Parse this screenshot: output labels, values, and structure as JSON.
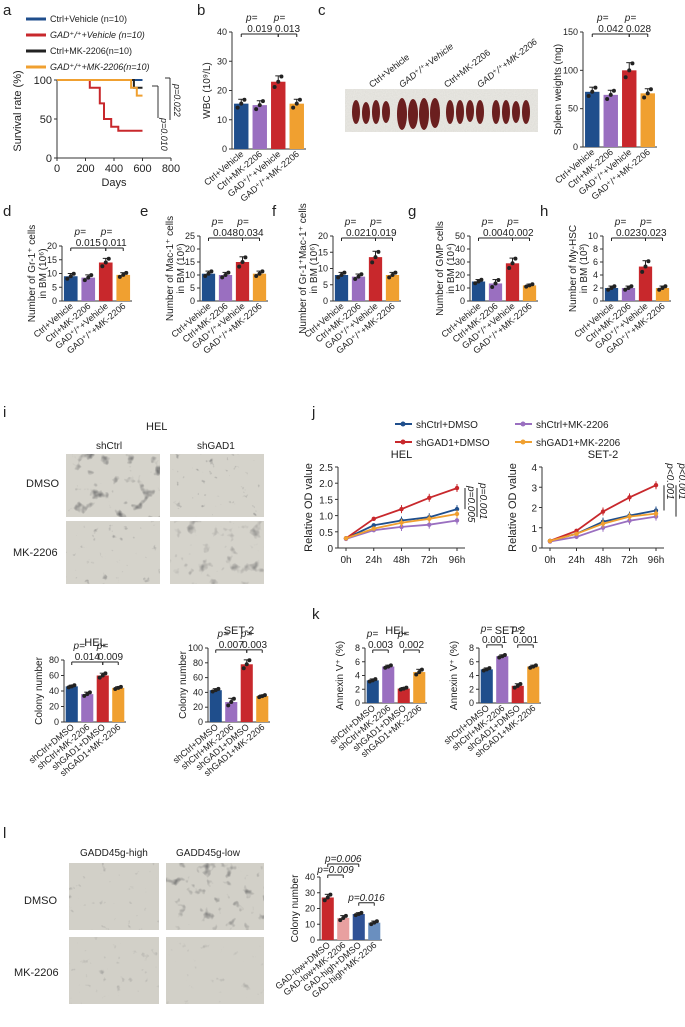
{
  "panel_labels": [
    "a",
    "b",
    "c",
    "d",
    "e",
    "f",
    "g",
    "h",
    "i",
    "j",
    "k",
    "l"
  ],
  "colors": {
    "blue": "#1f4e8c",
    "purple": "#9a6fc0",
    "red": "#c8282c",
    "orange": "#f0a030",
    "pink": "#e8a0a0",
    "steel": "#6a8fbf",
    "navy": "#2f5296"
  },
  "a": {
    "legend": [
      "Ctrl+Vehicle (n=10)",
      "GAD⁺/⁺+Vehicle (n=10)",
      "Ctrl+MK-2206(n=10)",
      "GAD⁺/⁺+MK-2206(n=10)"
    ],
    "pvalues": [
      "p=0.010",
      "p=0.022"
    ]
  },
  "c": {
    "photo_labels": [
      "Ctrl+Vehicle",
      "GAD⁺/⁺+Vehicle",
      "Ctrl+MK-2206",
      "GAD⁺/⁺+MK-2206"
    ]
  },
  "i": {
    "title": "HEL",
    "cols": [
      "shCtrl",
      "shGAD1"
    ],
    "rows": [
      "DMSO",
      "MK-2206"
    ]
  },
  "j": {
    "legend": [
      "shCtrl+DMSO",
      "shCtrl+MK-2206",
      "shGAD1+DMSO",
      "shGAD1+MK-2206"
    ]
  },
  "l": {
    "cols": [
      "GADD45g-high",
      "GADD45g-low"
    ],
    "rows": [
      "DMSO",
      "MK-2206"
    ]
  },
  "chart_data": [
    {
      "id": "a",
      "type": "line",
      "title": "",
      "xlabel": "Days",
      "ylabel": "Survival rate (%)",
      "xlim": [
        0,
        800
      ],
      "ylim": [
        0,
        100
      ],
      "xticks": [
        "0",
        "200",
        "400",
        "600",
        "800"
      ],
      "yticks": [
        "0",
        "50",
        "100"
      ],
      "series": [
        {
          "name": "Ctrl+Vehicle",
          "color": "#1f4e8c",
          "points": [
            [
              0,
              100
            ],
            [
              600,
              100
            ]
          ]
        },
        {
          "name": "GAD+Vehicle",
          "color": "#c8282c",
          "points": [
            [
              0,
              100
            ],
            [
              230,
              100
            ],
            [
              230,
              90
            ],
            [
              300,
              90
            ],
            [
              300,
              70
            ],
            [
              330,
              70
            ],
            [
              330,
              50
            ],
            [
              380,
              50
            ],
            [
              380,
              40
            ],
            [
              430,
              40
            ],
            [
              430,
              35
            ],
            [
              600,
              35
            ]
          ]
        },
        {
          "name": "Ctrl+MK-2206",
          "color": "#222222",
          "points": [
            [
              0,
              100
            ],
            [
              540,
              100
            ],
            [
              540,
              90
            ],
            [
              600,
              90
            ]
          ]
        },
        {
          "name": "GAD+MK-2206",
          "color": "#f0a030",
          "points": [
            [
              0,
              100
            ],
            [
              520,
              100
            ],
            [
              520,
              90
            ],
            [
              560,
              90
            ],
            [
              560,
              80
            ],
            [
              600,
              80
            ]
          ]
        }
      ]
    },
    {
      "id": "b",
      "type": "bar",
      "ylabel": "WBC (10⁹/L)",
      "ylim": [
        0,
        40
      ],
      "yticks": [
        "0",
        "10",
        "20",
        "30",
        "40"
      ],
      "categories": [
        "Ctrl+Vehicle",
        "Ctrl+MK-2206",
        "GAD⁺/⁺+Vehicle",
        "GAD⁺/⁺+MK-2206"
      ],
      "values": [
        15.5,
        15,
        23,
        15.5
      ],
      "errors": [
        1.5,
        1.5,
        2,
        1.5
      ],
      "pvals": [
        {
          "a": 0,
          "b": 2,
          "text": "0.019"
        },
        {
          "a": 2,
          "b": 3,
          "text": "0.013"
        }
      ]
    },
    {
      "id": "c",
      "type": "bar",
      "ylabel": "Spleen weights (mg)",
      "ylim": [
        0,
        150
      ],
      "yticks": [
        "0",
        "50",
        "100",
        "150"
      ],
      "categories": [
        "Ctrl+Vehicle",
        "Ctrl+MK-2206",
        "GAD⁺/⁺+Vehicle",
        "GAD⁺/⁺+MK-2206"
      ],
      "values": [
        72,
        68,
        100,
        70
      ],
      "errors": [
        6,
        6,
        10,
        6
      ],
      "pvals": [
        {
          "a": 0,
          "b": 2,
          "text": "0.042"
        },
        {
          "a": 2,
          "b": 3,
          "text": "0.028"
        }
      ]
    },
    {
      "id": "d",
      "type": "bar",
      "ylabel": "Number of Gr-1⁺ cells in BM (10⁶)",
      "ylim": [
        0,
        20
      ],
      "yticks": [
        "0",
        "5",
        "10",
        "15",
        "20"
      ],
      "categories": [
        "Ctrl+Vehicle",
        "Ctrl+MK-2206",
        "GAD⁺/⁺+Vehicle",
        "GAD⁺/⁺+MK-2206"
      ],
      "values": [
        9,
        8.5,
        14,
        9.5
      ],
      "errors": [
        1,
        1,
        1.5,
        0.8
      ],
      "pvals": [
        {
          "a": 0,
          "b": 2,
          "text": "0.015"
        },
        {
          "a": 2,
          "b": 3,
          "text": "0.011"
        }
      ]
    },
    {
      "id": "e",
      "type": "bar",
      "ylabel": "Number of Mac-1⁺ cells in BM (10⁶)",
      "ylim": [
        0,
        25
      ],
      "yticks": [
        "0",
        "5",
        "10",
        "15",
        "20",
        "25"
      ],
      "categories": [
        "Ctrl+Vehicle",
        "Ctrl+MK-2206",
        "GAD⁺/⁺+Vehicle",
        "GAD⁺/⁺+MK-2206"
      ],
      "values": [
        10.5,
        10,
        15,
        10.5
      ],
      "errors": [
        1,
        1,
        2,
        1
      ],
      "pvals": [
        {
          "a": 0,
          "b": 2,
          "text": "0.048"
        },
        {
          "a": 2,
          "b": 3,
          "text": "0.034"
        }
      ]
    },
    {
      "id": "f",
      "type": "bar",
      "ylabel": "Number of Gr-1⁺Mac-1⁺ cells in BM (10⁶)",
      "ylim": [
        0,
        20
      ],
      "yticks": [
        "0",
        "5",
        "10",
        "15",
        "20"
      ],
      "categories": [
        "Ctrl+Vehicle",
        "Ctrl+MK-2206",
        "GAD⁺/⁺+Vehicle",
        "GAD⁺/⁺+MK-2206"
      ],
      "values": [
        8,
        7.5,
        13.5,
        8
      ],
      "errors": [
        0.8,
        0.8,
        1.8,
        0.8
      ],
      "pvals": [
        {
          "a": 0,
          "b": 2,
          "text": "0.021"
        },
        {
          "a": 2,
          "b": 3,
          "text": "0.019"
        }
      ]
    },
    {
      "id": "g",
      "type": "bar",
      "ylabel": "Number of GMP cells in BM (10⁴)",
      "ylim": [
        0,
        50
      ],
      "yticks": [
        "0",
        "10",
        "20",
        "30",
        "40",
        "50"
      ],
      "categories": [
        "Ctrl+Vehicle",
        "Ctrl+MK-2206",
        "GAD⁺/⁺+Vehicle",
        "GAD⁺/⁺+MK-2206"
      ],
      "values": [
        15,
        13.5,
        29,
        12
      ],
      "errors": [
        1.5,
        3,
        4,
        1
      ],
      "pvals": [
        {
          "a": 0,
          "b": 2,
          "text": "0.004"
        },
        {
          "a": 2,
          "b": 3,
          "text": "0.002"
        }
      ]
    },
    {
      "id": "h",
      "type": "bar",
      "ylabel": "Number of My-HSC in BM (10³)",
      "ylim": [
        0,
        10
      ],
      "yticks": [
        "0",
        "2",
        "4",
        "6",
        "8",
        "10"
      ],
      "categories": [
        "Ctrl+Vehicle",
        "Ctrl+MK-2206",
        "GAD⁺/⁺+Vehicle",
        "GAD⁺/⁺+MK-2206"
      ],
      "values": [
        2,
        2,
        5.3,
        2
      ],
      "errors": [
        0.3,
        0.3,
        0.9,
        0.3
      ],
      "pvals": [
        {
          "a": 0,
          "b": 2,
          "text": "0.023"
        },
        {
          "a": 2,
          "b": 3,
          "text": "0.023"
        }
      ]
    },
    {
      "id": "i1",
      "type": "bar",
      "title": "HEL",
      "ylabel": "Colony number",
      "ylim": [
        0,
        80
      ],
      "yticks": [
        "0",
        "20",
        "40",
        "60",
        "80"
      ],
      "categories": [
        "shCtrl+DMSO",
        "shCtrl+MK-2206",
        "shGAD1+DMSO",
        "shGAD1+MK-2206"
      ],
      "values": [
        46,
        36,
        60,
        44
      ],
      "errors": [
        1.5,
        2.5,
        3,
        1.5
      ],
      "pvals": [
        {
          "a": 0,
          "b": 2,
          "text": "0.014"
        },
        {
          "a": 2,
          "b": 3,
          "text": "0.009"
        }
      ]
    },
    {
      "id": "i2",
      "type": "bar",
      "title": "SET-2",
      "ylabel": "Colony number",
      "ylim": [
        0,
        100
      ],
      "yticks": [
        "0",
        "20",
        "40",
        "60",
        "80",
        "100"
      ],
      "categories": [
        "shCtrl+DMSO",
        "shCtrl+MK-2206",
        "shGAD1+DMSO",
        "shGAD1+MK-2206"
      ],
      "values": [
        43,
        27,
        78,
        35
      ],
      "errors": [
        2,
        5,
        6,
        1.5
      ],
      "pvals": [
        {
          "a": 0,
          "b": 2,
          "text": "0.007"
        },
        {
          "a": 2,
          "b": 3,
          "text": "0.003"
        }
      ]
    },
    {
      "id": "j1",
      "type": "line",
      "title": "HEL",
      "ylabel": "Relative OD value",
      "ylim": [
        0,
        2.5
      ],
      "yticks": [
        "0",
        "0.5",
        "1.0",
        "1.5",
        "2.0",
        "2.5"
      ],
      "categories": [
        "0h",
        "24h",
        "48h",
        "72h",
        "96h"
      ],
      "series": [
        {
          "name": "shCtrl+DMSO",
          "color": "#1f4e8c",
          "values": [
            0.3,
            0.7,
            0.85,
            0.95,
            1.2
          ]
        },
        {
          "name": "shCtrl+MK-2206",
          "color": "#9a6fc0",
          "values": [
            0.28,
            0.55,
            0.65,
            0.72,
            0.85
          ]
        },
        {
          "name": "shGAD1+DMSO",
          "color": "#c8282c",
          "values": [
            0.3,
            0.9,
            1.2,
            1.55,
            1.85
          ]
        },
        {
          "name": "shGAD1+MK-2206",
          "color": "#f0a030",
          "values": [
            0.3,
            0.6,
            0.78,
            0.9,
            1.05
          ]
        }
      ],
      "pvalues": [
        "p=0.005",
        "p=0.001"
      ]
    },
    {
      "id": "j2",
      "type": "line",
      "title": "SET-2",
      "ylabel": "Relative OD value",
      "ylim": [
        0,
        4
      ],
      "yticks": [
        "0",
        "1",
        "2",
        "3",
        "4"
      ],
      "categories": [
        "0h",
        "24h",
        "48h",
        "72h",
        "96h"
      ],
      "series": [
        {
          "name": "shCtrl+DMSO",
          "color": "#1f4e8c",
          "values": [
            0.35,
            0.7,
            1.3,
            1.6,
            1.85
          ]
        },
        {
          "name": "shCtrl+MK-2206",
          "color": "#9a6fc0",
          "values": [
            0.32,
            0.55,
            1.0,
            1.35,
            1.55
          ]
        },
        {
          "name": "shGAD1+DMSO",
          "color": "#c8282c",
          "values": [
            0.35,
            0.85,
            1.8,
            2.5,
            3.1
          ]
        },
        {
          "name": "shGAD1+MK-2206",
          "color": "#f0a030",
          "values": [
            0.35,
            0.7,
            1.2,
            1.55,
            1.7
          ]
        }
      ],
      "pvalues": [
        "p<0.001",
        "p<0.001"
      ]
    },
    {
      "id": "k1",
      "type": "bar",
      "title": "HEL",
      "ylabel": "Annexin V⁺ (%)",
      "ylim": [
        0,
        8
      ],
      "yticks": [
        "0",
        "2",
        "4",
        "6",
        "8"
      ],
      "categories": [
        "shCtrl+DMSO",
        "shCtrl+MK-2206",
        "shGAD1+DMSO",
        "shGAD1+MK-2206"
      ],
      "values": [
        3.3,
        5.3,
        2.1,
        4.5
      ],
      "errors": [
        0.2,
        0.2,
        0.15,
        0.4
      ],
      "pvals": [
        {
          "a": 0,
          "b": 1,
          "text": "0.003"
        },
        {
          "a": 2,
          "b": 3,
          "text": "0.002"
        }
      ]
    },
    {
      "id": "k2",
      "type": "bar",
      "title": "SET-2",
      "ylabel": "Annexin V⁺ (%)",
      "ylim": [
        0,
        8
      ],
      "yticks": [
        "0",
        "2",
        "4",
        "6",
        "8"
      ],
      "categories": [
        "shCtrl+DMSO",
        "shCtrl+MK-2206",
        "shGAD1+DMSO",
        "shGAD1+MK-2206"
      ],
      "values": [
        4.9,
        6.8,
        2.5,
        5.3
      ],
      "errors": [
        0.2,
        0.2,
        0.3,
        0.2
      ],
      "pvals": [
        {
          "a": 0,
          "b": 1,
          "text": "0.001"
        },
        {
          "a": 2,
          "b": 3,
          "text": "0.001"
        }
      ],
      "pval_prefixes": [
        "p=",
        "p<"
      ]
    },
    {
      "id": "l",
      "type": "bar",
      "ylabel": "Colony number",
      "ylim": [
        0,
        40
      ],
      "yticks": [
        "0",
        "10",
        "20",
        "30",
        "40"
      ],
      "categories": [
        "GAD-low+DMSO",
        "GAD-low+MK-2206",
        "GAD-high+DMSO",
        "GAD-high+MK-2206"
      ],
      "values": [
        27,
        14,
        16.5,
        11
      ],
      "errors": [
        2,
        1.5,
        0.8,
        1
      ],
      "pvals": [
        {
          "a": 0,
          "b": 2,
          "text": "0.006"
        },
        {
          "a": 0,
          "b": 1,
          "text": "0.009"
        },
        {
          "a": 2,
          "b": 3,
          "text": "0.016"
        }
      ]
    }
  ]
}
